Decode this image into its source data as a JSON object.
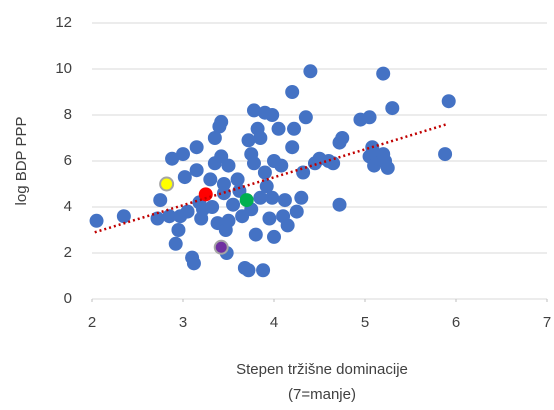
{
  "chart_data": {
    "type": "scatter",
    "y_label": "log BDP PPP",
    "x_label": [
      "Stepen tržišne dominacije",
      "(7=manje)"
    ],
    "xlim": [
      2,
      7
    ],
    "xticks": [
      2,
      3,
      4,
      5,
      6,
      7
    ],
    "ylim": [
      0,
      12
    ],
    "yticks": [
      0,
      2,
      4,
      6,
      8,
      10,
      12
    ],
    "grid": true,
    "series": [
      {
        "color": "#4472c4",
        "x": [
          2.05,
          2.35,
          2.72,
          2.75,
          2.85,
          2.88,
          2.92,
          2.95,
          2.97,
          3.0,
          3.02,
          3.05,
          3.1,
          3.12,
          3.15,
          3.15,
          3.18,
          3.2,
          3.22,
          3.3,
          3.32,
          3.35,
          3.35,
          3.38,
          3.4,
          3.42,
          3.42,
          3.45,
          3.45,
          3.47,
          3.48,
          3.5,
          3.5,
          3.55,
          3.6,
          3.62,
          3.65,
          3.68,
          3.72,
          3.72,
          3.75,
          3.75,
          3.78,
          3.78,
          3.8,
          3.82,
          3.85,
          3.85,
          3.88,
          3.9,
          3.9,
          3.92,
          3.95,
          3.98,
          3.98,
          4.0,
          4.0,
          4.05,
          4.08,
          4.1,
          4.12,
          4.15,
          4.2,
          4.2,
          4.22,
          4.25,
          4.3,
          4.32,
          4.35,
          4.4,
          4.45,
          4.5,
          4.6,
          4.65,
          4.72,
          4.72,
          4.75,
          4.95,
          5.05,
          5.05,
          5.08,
          5.1,
          5.15,
          5.2,
          5.2,
          5.22,
          5.25,
          5.3,
          5.88,
          5.92
        ],
        "y": [
          3.4,
          3.6,
          3.5,
          4.3,
          3.6,
          6.1,
          2.4,
          3.0,
          3.6,
          6.3,
          5.3,
          3.8,
          1.8,
          1.55,
          6.6,
          5.6,
          4.2,
          3.5,
          3.9,
          5.2,
          4.0,
          7.0,
          5.9,
          3.3,
          7.5,
          7.7,
          6.2,
          5.0,
          4.6,
          3.0,
          2.0,
          5.8,
          3.4,
          4.1,
          5.2,
          4.7,
          3.6,
          1.35,
          1.25,
          6.9,
          6.3,
          3.9,
          8.2,
          5.9,
          2.8,
          7.4,
          7.0,
          4.4,
          1.25,
          8.1,
          5.5,
          4.9,
          3.5,
          8.0,
          4.4,
          6.0,
          2.7,
          7.4,
          5.8,
          3.6,
          4.3,
          3.2,
          9.0,
          6.6,
          7.4,
          3.8,
          4.4,
          5.5,
          7.9,
          9.9,
          5.9,
          6.1,
          6.0,
          5.9,
          6.8,
          4.1,
          7.0,
          7.8,
          7.9,
          6.2,
          6.6,
          5.8,
          6.1,
          9.8,
          6.3,
          6.0,
          5.7,
          8.3,
          6.3,
          8.6
        ]
      },
      {
        "color": "#ffff00",
        "stroke": "#a5a5a5",
        "x": [
          2.82
        ],
        "y": [
          5.0
        ]
      },
      {
        "color": "#ff0000",
        "x": [
          3.25
        ],
        "y": [
          4.55
        ]
      },
      {
        "color": "#00b050",
        "x": [
          3.7
        ],
        "y": [
          4.3
        ]
      },
      {
        "color": "#7030a0",
        "stroke": "#a5a5a5",
        "x": [
          3.42
        ],
        "y": [
          2.25
        ]
      }
    ],
    "trendline": {
      "x": [
        2.03,
        5.9
      ],
      "y": [
        2.9,
        7.6
      ],
      "color": "#c00000"
    }
  }
}
